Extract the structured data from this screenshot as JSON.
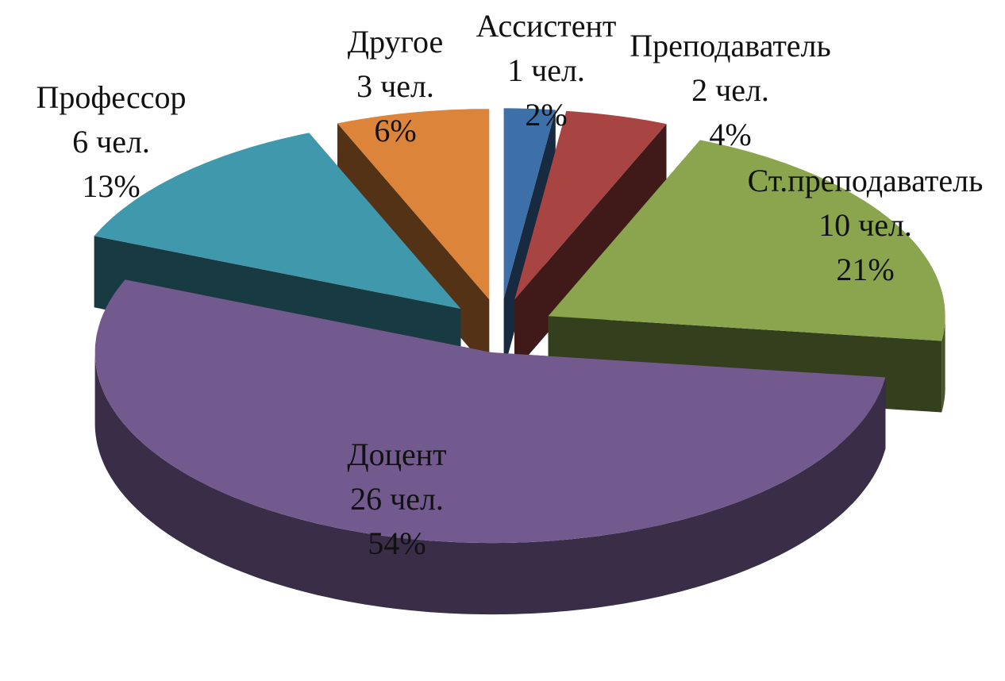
{
  "chart_data": {
    "type": "pie3d",
    "categories": [
      "Ассистент",
      "Преподаватель",
      "Ст.преподаватель",
      "Доцент",
      "Профессор",
      "Другое"
    ],
    "values": [
      1,
      2,
      10,
      26,
      6,
      3
    ],
    "value_labels": [
      "1 чел.",
      "2 чел.",
      "10 чел.",
      "26 чел.",
      "6 чел.",
      "3 чел."
    ],
    "percentages": [
      2,
      4,
      21,
      54,
      13,
      6
    ],
    "percentage_labels": [
      "2%",
      "4%",
      "21%",
      "54%",
      "13%",
      "6%"
    ],
    "colors": [
      "#3d6fa8",
      "#a84442",
      "#8aa54e",
      "#725a8f",
      "#4098ad",
      "#dd843b"
    ]
  }
}
